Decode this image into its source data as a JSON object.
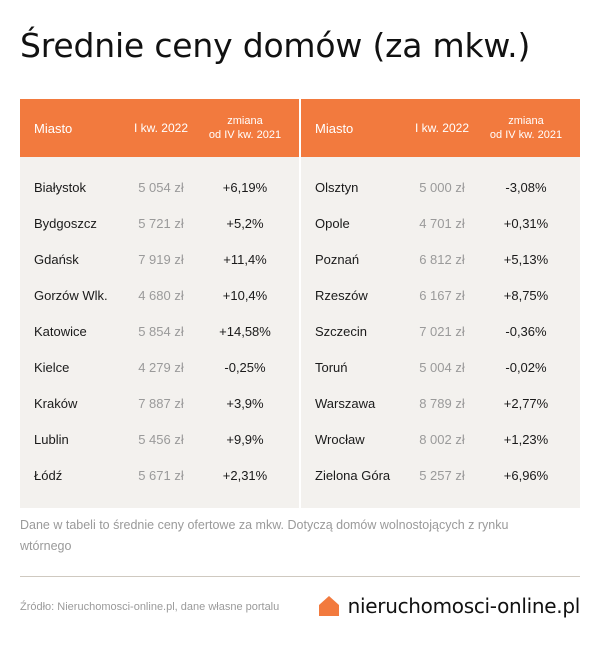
{
  "title": "Średnie ceny domów (za mkw.)",
  "colors": {
    "header": "#f27a3e",
    "panel": "#f3f1ee",
    "muted": "#9a9a9a",
    "logo": "#f27a3e"
  },
  "table_left": {
    "headers": {
      "city": "Miasto",
      "quarter": "I kw. 2022",
      "change_line1": "zmiana",
      "change_line2": "od IV kw. 2021"
    },
    "rows": [
      {
        "city": "Białystok",
        "price": "5 054 zł",
        "change": "+6,19%"
      },
      {
        "city": "Bydgoszcz",
        "price": "5 721 zł",
        "change": "+5,2%"
      },
      {
        "city": "Gdańsk",
        "price": "7 919 zł",
        "change": "+11,4%"
      },
      {
        "city": "Gorzów Wlk.",
        "price": "4 680 zł",
        "change": "+10,4%"
      },
      {
        "city": "Katowice",
        "price": "5 854 zł",
        "change": "+14,58%"
      },
      {
        "city": "Kielce",
        "price": "4 279 zł",
        "change": "-0,25%"
      },
      {
        "city": "Kraków",
        "price": "7 887 zł",
        "change": "+3,9%"
      },
      {
        "city": "Lublin",
        "price": "5 456 zł",
        "change": "+9,9%"
      },
      {
        "city": "Łódź",
        "price": "5 671 zł",
        "change": "+2,31%"
      }
    ]
  },
  "table_right": {
    "headers": {
      "city": "Miasto",
      "quarter": "I kw. 2022",
      "change_line1": "zmiana",
      "change_line2": "od IV kw. 2021"
    },
    "rows": [
      {
        "city": "Olsztyn",
        "price": "5 000 zł",
        "change": "-3,08%"
      },
      {
        "city": "Opole",
        "price": "4 701 zł",
        "change": "+0,31%"
      },
      {
        "city": "Poznań",
        "price": "6 812 zł",
        "change": "+5,13%"
      },
      {
        "city": "Rzeszów",
        "price": "6 167 zł",
        "change": "+8,75%"
      },
      {
        "city": "Szczecin",
        "price": "7 021 zł",
        "change": "-0,36%"
      },
      {
        "city": "Toruń",
        "price": "5 004 zł",
        "change": "-0,02%"
      },
      {
        "city": "Warszawa",
        "price": "8 789 zł",
        "change": "+2,77%"
      },
      {
        "city": "Wrocław",
        "price": "8 002 zł",
        "change": "+1,23%"
      },
      {
        "city": "Zielona Góra",
        "price": "5 257 zł",
        "change": "+6,96%"
      }
    ]
  },
  "note": "Dane w tabeli to średnie ceny ofertowe za mkw. Dotyczą domów wolnostojących z rynku wtórnego",
  "source": "Źródło: Nieruchomosci-online.pl, dane własne portalu",
  "brand": {
    "name": "nieruchomosci-online.pl",
    "icon": "house-icon"
  }
}
